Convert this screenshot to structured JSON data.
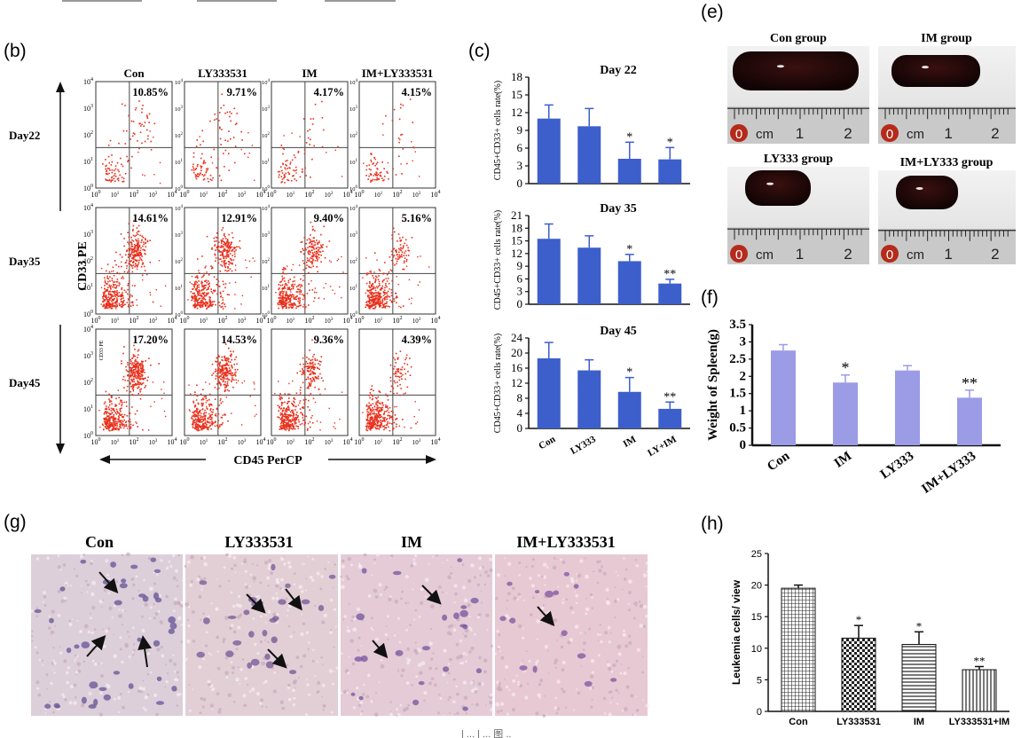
{
  "panel_b": {
    "label": "(b)",
    "columns": [
      "Con",
      "LY333531",
      "IM",
      "IM+LY333531"
    ],
    "rows": [
      {
        "label": "Day22",
        "percents": [
          "10.85%",
          "9.71%",
          "4.17%",
          "4.15%"
        ]
      },
      {
        "label": "Day35",
        "percents": [
          "14.61%",
          "12.91%",
          "9.40%",
          "5.16%"
        ]
      },
      {
        "label": "Day45",
        "percents": [
          "17.20%",
          "14.53%",
          "9.36%",
          "4.39%"
        ]
      }
    ],
    "y_axis_label": "CD33 PE",
    "x_axis_label": "CD45 PerCP",
    "inner_axis_label": "CD33 PE",
    "tick_labels": {
      "t0": "10",
      "t0_exp": "0",
      "t1": "10",
      "t1_exp": "1",
      "t2": "10",
      "t2_exp": "2",
      "t3": "10",
      "t3_exp": "3",
      "t4": "10",
      "t4_exp": "4"
    },
    "dot_color": "#e8301c"
  },
  "panel_e": {
    "label": "(e)",
    "titles": [
      "Con group",
      "IM group",
      "LY333 group",
      "IM+LY333 group"
    ],
    "ruler": {
      "zero": "0",
      "unit": "cm",
      "one": "1",
      "two": "2"
    }
  },
  "panel_g": {
    "label": "(g)",
    "titles": [
      "Con",
      "LY333531",
      "IM",
      "IM+LY333531"
    ]
  },
  "footer_fragment": "| ... | ... 图 ..",
  "chart_data": [
    {
      "id": "c_day22",
      "panel": "(c)",
      "type": "bar",
      "title": "Day 22",
      "categories": [
        "Con",
        "LY333",
        "IM",
        "LY+IM"
      ],
      "values": [
        11.0,
        9.7,
        4.2,
        4.1
      ],
      "errors": [
        2.3,
        3.0,
        2.8,
        2.0
      ],
      "annotations": [
        "",
        "",
        "*",
        "*"
      ],
      "ylabel": "CD45+CD33+ cells rate(%)",
      "ylim": [
        0,
        18
      ],
      "yticks": [
        "0",
        "3",
        "6",
        "9",
        "12",
        "15",
        "18"
      ],
      "color": "#3d5fcb"
    },
    {
      "id": "c_day35",
      "panel": "(c)",
      "type": "bar",
      "title": "Day 35",
      "categories": [
        "Con",
        "LY333",
        "IM",
        "LY+IM"
      ],
      "values": [
        15.5,
        13.4,
        10.2,
        4.9
      ],
      "errors": [
        3.5,
        2.8,
        1.6,
        1.0
      ],
      "annotations": [
        "",
        "",
        "*",
        "**"
      ],
      "ylabel": "CD45+CD33+ cells rate(%)",
      "ylim": [
        0,
        21
      ],
      "yticks": [
        "0",
        "3",
        "6",
        "9",
        "12",
        "15",
        "18",
        "21"
      ],
      "color": "#3d5fcb"
    },
    {
      "id": "c_day45",
      "panel": "(c)",
      "type": "bar",
      "title": "Day 45",
      "categories": [
        "Con",
        "LY333",
        "IM",
        "LY+IM"
      ],
      "values": [
        18.6,
        15.4,
        9.7,
        5.2
      ],
      "errors": [
        4.2,
        2.8,
        3.8,
        1.8
      ],
      "annotations": [
        "",
        "",
        "*",
        "**"
      ],
      "ylabel": "CD45+CD33+ cells rate(%)",
      "ylim": [
        0,
        24
      ],
      "yticks": [
        "0",
        "4",
        "8",
        "12",
        "16",
        "20",
        "24"
      ],
      "color": "#3d5fcb"
    },
    {
      "id": "f_spleen",
      "panel": "(f)",
      "type": "bar",
      "title": "",
      "categories": [
        "Con",
        "IM",
        "LY333",
        "IM+LY333"
      ],
      "values": [
        2.75,
        1.82,
        2.17,
        1.38
      ],
      "errors": [
        0.17,
        0.22,
        0.14,
        0.22
      ],
      "annotations": [
        "",
        "*",
        "",
        "**"
      ],
      "ylabel": "Weight of Spleen(g)",
      "ylim": [
        0,
        3.5
      ],
      "yticks": [
        "0",
        "0.5",
        "1",
        "1.5",
        "2",
        "2.5",
        "3",
        "3.5"
      ],
      "color": "#9b9be6"
    },
    {
      "id": "h_leukemia",
      "panel": "(h)",
      "type": "bar",
      "title": "",
      "categories": [
        "Con",
        "LY333531",
        "IM",
        "LY333531+IM"
      ],
      "values": [
        19.5,
        11.6,
        10.6,
        6.6
      ],
      "errors": [
        0.5,
        2.0,
        2.0,
        0.5
      ],
      "annotations": [
        "",
        "*",
        "*",
        "**"
      ],
      "ylabel": "Leukemia cells/ view",
      "ylim": [
        0,
        25
      ],
      "yticks": [
        "0",
        "5",
        "10",
        "15",
        "20",
        "25"
      ],
      "patterns": [
        "grid",
        "checker",
        "hlines",
        "vlines"
      ]
    }
  ]
}
